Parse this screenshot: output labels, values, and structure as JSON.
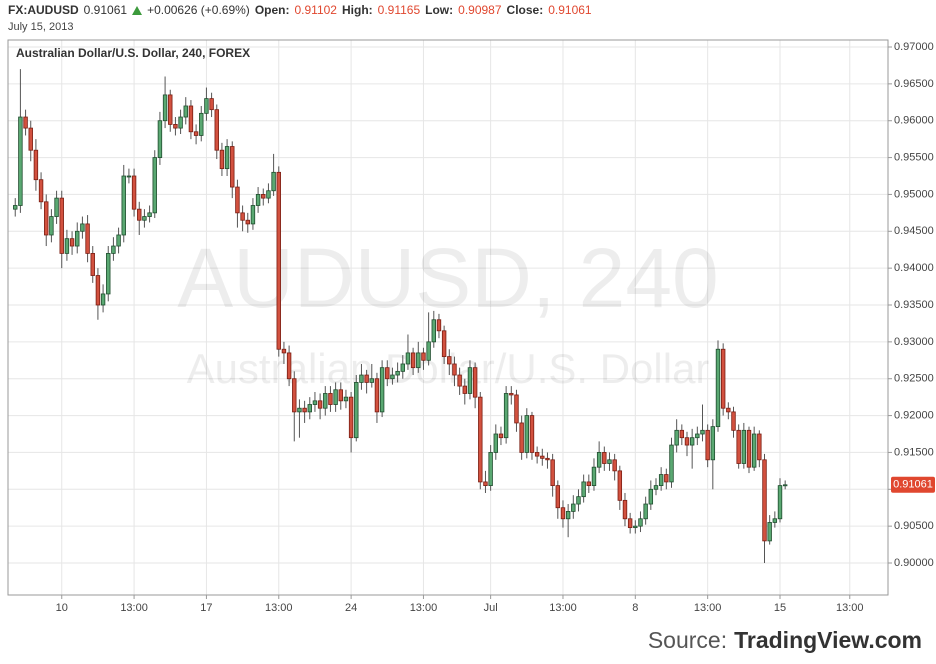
{
  "header": {
    "symbol": "FX:AUDUSD",
    "last": 0.91061,
    "change": "+0.00626 (+0.69%)",
    "open_label": "Open:",
    "open": 0.91102,
    "high_label": "High:",
    "high": 0.91165,
    "low_label": "Low:",
    "low": 0.90987,
    "close_label": "Close:",
    "close": 0.91061,
    "date": "July 15, 2013"
  },
  "chart_data": {
    "type": "candlestick",
    "title": "Australian Dollar/U.S. Dollar, 240, FOREX",
    "watermark": "AUDUSD, 240",
    "watermark_subtitle": "Australian Dollar/U.S. Dollar",
    "up_color": "#5aa872",
    "down_color": "#d2513f",
    "up_edge": "#1f4d2e",
    "down_edge": "#7a1d12",
    "wick_color": "#555555",
    "grid": true,
    "last_price": 0.91061,
    "last_price_color": "#e0472f",
    "xlim": [
      -1.4,
      168.9
    ],
    "ylim": [
      0.89566,
      0.97095
    ],
    "xticks": [
      {
        "value": 9,
        "label": "10"
      },
      {
        "value": 23,
        "label": "13:00"
      },
      {
        "value": 37,
        "label": "17"
      },
      {
        "value": 51,
        "label": "13:00"
      },
      {
        "value": 65,
        "label": "24"
      },
      {
        "value": 79,
        "label": "13:00"
      },
      {
        "value": 92,
        "label": "Jul"
      },
      {
        "value": 106,
        "label": "13:00"
      },
      {
        "value": 120,
        "label": "8"
      },
      {
        "value": 134,
        "label": "13:00"
      },
      {
        "value": 148,
        "label": "15"
      },
      {
        "value": 161.5,
        "label": "13:00"
      }
    ],
    "yticks": [
      {
        "value": 0.9,
        "label": "0.90000"
      },
      {
        "value": 0.905,
        "label": "0.90500"
      },
      {
        "value": 0.91,
        "label": "0.91000"
      },
      {
        "value": 0.915,
        "label": "0.91500"
      },
      {
        "value": 0.92,
        "label": "0.92000"
      },
      {
        "value": 0.925,
        "label": "0.92500"
      },
      {
        "value": 0.93,
        "label": "0.93000"
      },
      {
        "value": 0.935,
        "label": "0.93500"
      },
      {
        "value": 0.94,
        "label": "0.94000"
      },
      {
        "value": 0.945,
        "label": "0.94500"
      },
      {
        "value": 0.95,
        "label": "0.95000"
      },
      {
        "value": 0.955,
        "label": "0.95500"
      },
      {
        "value": 0.96,
        "label": "0.96000"
      },
      {
        "value": 0.965,
        "label": "0.96500"
      },
      {
        "value": 0.97,
        "label": "0.97000"
      }
    ],
    "open": [
      0.948,
      0.9485,
      0.9605,
      0.959,
      0.956,
      0.952,
      0.949,
      0.9445,
      0.947,
      0.9495,
      0.942,
      0.944,
      0.943,
      0.945,
      0.946,
      0.942,
      0.939,
      0.935,
      0.9365,
      0.942,
      0.943,
      0.9445,
      0.9525,
      0.9525,
      0.948,
      0.9465,
      0.947,
      0.9475,
      0.955,
      0.96,
      0.9635,
      0.9595,
      0.959,
      0.9605,
      0.962,
      0.9585,
      0.958,
      0.961,
      0.963,
      0.9615,
      0.956,
      0.9535,
      0.9565,
      0.951,
      0.9475,
      0.9465,
      0.946,
      0.9485,
      0.95,
      0.9495,
      0.9505,
      0.953,
      0.929,
      0.9285,
      0.925,
      0.9205,
      0.921,
      0.9205,
      0.9215,
      0.922,
      0.921,
      0.923,
      0.9215,
      0.9235,
      0.922,
      0.9225,
      0.917,
      0.9245,
      0.9255,
      0.9245,
      0.925,
      0.9205,
      0.9265,
      0.925,
      0.9255,
      0.926,
      0.927,
      0.9285,
      0.9265,
      0.9285,
      0.9275,
      0.93,
      0.933,
      0.9315,
      0.928,
      0.927,
      0.9255,
      0.924,
      0.923,
      0.9265,
      0.9225,
      0.911,
      0.9105,
      0.915,
      0.9175,
      0.917,
      0.923,
      0.9228,
      0.919,
      0.915,
      0.92,
      0.915,
      0.9145,
      0.9142,
      0.914,
      0.9105,
      0.9075,
      0.906,
      0.907,
      0.908,
      0.909,
      0.911,
      0.9105,
      0.913,
      0.915,
      0.9135,
      0.914,
      0.9125,
      0.9085,
      0.906,
      0.9048,
      0.905,
      0.906,
      0.908,
      0.91,
      0.9105,
      0.912,
      0.911,
      0.916,
      0.918,
      0.917,
      0.916,
      0.917,
      0.9175,
      0.918,
      0.914,
      0.9185,
      0.929,
      0.921,
      0.9205,
      0.918,
      0.9135,
      0.918,
      0.913,
      0.9175,
      0.914,
      0.903,
      0.9055,
      0.906,
      0.9105
    ],
    "high": [
      0.9495,
      0.967,
      0.9615,
      0.96,
      0.9575,
      0.953,
      0.95,
      0.948,
      0.9505,
      0.9505,
      0.9452,
      0.945,
      0.9462,
      0.947,
      0.9472,
      0.943,
      0.94,
      0.9378,
      0.943,
      0.9442,
      0.9455,
      0.954,
      0.9535,
      0.9535,
      0.949,
      0.948,
      0.9485,
      0.956,
      0.9612,
      0.966,
      0.9642,
      0.9605,
      0.9615,
      0.9632,
      0.9628,
      0.9595,
      0.962,
      0.9645,
      0.9638,
      0.9622,
      0.957,
      0.9575,
      0.9572,
      0.952,
      0.9485,
      0.9475,
      0.9495,
      0.951,
      0.9508,
      0.9515,
      0.9555,
      0.9538,
      0.93,
      0.9295,
      0.926,
      0.9222,
      0.922,
      0.9225,
      0.9232,
      0.923,
      0.924,
      0.924,
      0.9245,
      0.9245,
      0.9235,
      0.9232,
      0.9255,
      0.927,
      0.9262,
      0.927,
      0.9258,
      0.9275,
      0.9275,
      0.9265,
      0.9272,
      0.9282,
      0.931,
      0.9292,
      0.93,
      0.9292,
      0.934,
      0.9342,
      0.9338,
      0.9322,
      0.929,
      0.928,
      0.9265,
      0.925,
      0.9275,
      0.9272,
      0.9232,
      0.9125,
      0.916,
      0.9188,
      0.9185,
      0.924,
      0.924,
      0.9235,
      0.92,
      0.921,
      0.9205,
      0.9158,
      0.9155,
      0.915,
      0.9148,
      0.9112,
      0.9085,
      0.908,
      0.9092,
      0.91,
      0.912,
      0.912,
      0.9142,
      0.9165,
      0.9158,
      0.915,
      0.9148,
      0.9132,
      0.9095,
      0.9068,
      0.9058,
      0.907,
      0.909,
      0.9112,
      0.9115,
      0.913,
      0.9128,
      0.917,
      0.9195,
      0.9188,
      0.9178,
      0.9182,
      0.9185,
      0.9215,
      0.9188,
      0.9195,
      0.9302,
      0.9298,
      0.9218,
      0.9212,
      0.9188,
      0.919,
      0.9185,
      0.9185,
      0.918,
      0.9148,
      0.9065,
      0.907,
      0.9115,
      0.9112
    ],
    "low": [
      0.947,
      0.9475,
      0.958,
      0.9545,
      0.9505,
      0.948,
      0.943,
      0.9435,
      0.946,
      0.94,
      0.941,
      0.9418,
      0.942,
      0.944,
      0.9408,
      0.938,
      0.933,
      0.934,
      0.9355,
      0.941,
      0.942,
      0.9435,
      0.9515,
      0.947,
      0.9445,
      0.9455,
      0.9462,
      0.9468,
      0.954,
      0.959,
      0.9585,
      0.958,
      0.9582,
      0.9595,
      0.9575,
      0.9568,
      0.9572,
      0.96,
      0.9605,
      0.9548,
      0.9525,
      0.9525,
      0.9495,
      0.9455,
      0.945,
      0.9448,
      0.9452,
      0.9475,
      0.9485,
      0.9488,
      0.9498,
      0.928,
      0.927,
      0.924,
      0.9165,
      0.917,
      0.919,
      0.9195,
      0.9205,
      0.9195,
      0.92,
      0.9205,
      0.9205,
      0.9208,
      0.921,
      0.915,
      0.9165,
      0.9235,
      0.923,
      0.9238,
      0.919,
      0.9198,
      0.924,
      0.9242,
      0.9245,
      0.925,
      0.9262,
      0.9255,
      0.9258,
      0.9262,
      0.9268,
      0.9292,
      0.9305,
      0.927,
      0.9255,
      0.924,
      0.9228,
      0.9215,
      0.9222,
      0.921,
      0.91,
      0.9095,
      0.9098,
      0.914,
      0.916,
      0.9162,
      0.9215,
      0.9178,
      0.914,
      0.9142,
      0.914,
      0.9135,
      0.9132,
      0.9128,
      0.909,
      0.906,
      0.9048,
      0.9035,
      0.906,
      0.907,
      0.9082,
      0.9095,
      0.9098,
      0.9122,
      0.9125,
      0.9125,
      0.9112,
      0.9072,
      0.905,
      0.904,
      0.904,
      0.9042,
      0.9052,
      0.9072,
      0.9092,
      0.9098,
      0.91,
      0.9102,
      0.915,
      0.916,
      0.9145,
      0.9128,
      0.916,
      0.9165,
      0.913,
      0.91,
      0.9178,
      0.92,
      0.9195,
      0.917,
      0.9128,
      0.9128,
      0.9122,
      0.9125,
      0.913,
      0.9,
      0.9025,
      0.9048,
      0.9055,
      0.91
    ],
    "close": [
      0.9485,
      0.9605,
      0.959,
      0.956,
      0.952,
      0.949,
      0.9445,
      0.947,
      0.9495,
      0.942,
      0.944,
      0.943,
      0.945,
      0.946,
      0.942,
      0.939,
      0.935,
      0.9365,
      0.942,
      0.943,
      0.9445,
      0.9525,
      0.9525,
      0.948,
      0.9465,
      0.947,
      0.9475,
      0.955,
      0.96,
      0.9635,
      0.9595,
      0.959,
      0.9605,
      0.962,
      0.9585,
      0.958,
      0.961,
      0.963,
      0.9615,
      0.956,
      0.9535,
      0.9565,
      0.951,
      0.9475,
      0.9465,
      0.946,
      0.9485,
      0.95,
      0.9495,
      0.9505,
      0.953,
      0.929,
      0.9285,
      0.925,
      0.9205,
      0.921,
      0.9205,
      0.9215,
      0.922,
      0.921,
      0.923,
      0.9215,
      0.9235,
      0.922,
      0.9225,
      0.917,
      0.9245,
      0.9255,
      0.9245,
      0.925,
      0.9205,
      0.9265,
      0.925,
      0.9255,
      0.926,
      0.927,
      0.9285,
      0.9265,
      0.9285,
      0.9275,
      0.93,
      0.933,
      0.9315,
      0.928,
      0.927,
      0.9255,
      0.924,
      0.923,
      0.9265,
      0.9225,
      0.911,
      0.9105,
      0.915,
      0.9175,
      0.917,
      0.923,
      0.9228,
      0.919,
      0.915,
      0.92,
      0.915,
      0.9145,
      0.9142,
      0.914,
      0.9105,
      0.9075,
      0.906,
      0.907,
      0.908,
      0.909,
      0.911,
      0.9105,
      0.913,
      0.915,
      0.9135,
      0.914,
      0.9125,
      0.9085,
      0.906,
      0.9048,
      0.905,
      0.906,
      0.908,
      0.91,
      0.9105,
      0.912,
      0.911,
      0.916,
      0.918,
      0.917,
      0.916,
      0.917,
      0.9175,
      0.918,
      0.914,
      0.9185,
      0.929,
      0.921,
      0.9205,
      0.918,
      0.9135,
      0.918,
      0.913,
      0.9175,
      0.914,
      0.903,
      0.9055,
      0.906,
      0.9105,
      0.91061
    ]
  },
  "footer": {
    "source_prefix": "Source:",
    "source_name": "TradingView.com"
  }
}
